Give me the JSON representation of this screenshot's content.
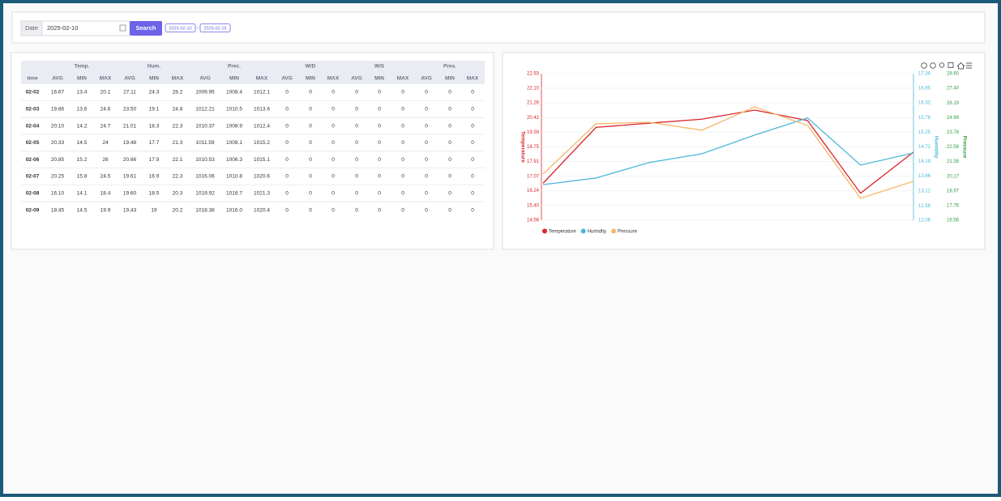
{
  "search": {
    "label": "Date",
    "date": "2025-02-10",
    "button": "Search",
    "range_start": "2025-02-10",
    "range_sep": "~",
    "range_end": "2025-02-16"
  },
  "table": {
    "groups": [
      "Temp.",
      "Hum.",
      "Prec.",
      "W/D",
      "W/S",
      "Pres."
    ],
    "columns": [
      "time",
      "AVG",
      "MIN",
      "MAX",
      "AVG",
      "MIN",
      "MAX",
      "AVG",
      "MIN",
      "MAX",
      "AVG",
      "MIN",
      "MAX",
      "AVG",
      "MIN",
      "MAX",
      "AVG",
      "MIN",
      "MAX"
    ],
    "rows": [
      [
        "02-02",
        "16.67",
        "13.4",
        "20.1",
        "27.11",
        "24.3",
        "28.2",
        "1009.95",
        "1008.4",
        "1012.1",
        "0",
        "0",
        "0",
        "0",
        "0",
        "0",
        "0",
        "0",
        "0"
      ],
      [
        "02-03",
        "19.86",
        "13.6",
        "24.6",
        "23.50",
        "19.1",
        "24.8",
        "1012.21",
        "1010.5",
        "1013.6",
        "0",
        "0",
        "0",
        "0",
        "0",
        "0",
        "0",
        "0",
        "0"
      ],
      [
        "02-04",
        "20.10",
        "14.2",
        "24.7",
        "21.01",
        "18.3",
        "22.3",
        "1010.37",
        "1008.9",
        "1012.4",
        "0",
        "0",
        "0",
        "0",
        "0",
        "0",
        "0",
        "0",
        "0"
      ],
      [
        "02-05",
        "20.33",
        "14.5",
        "24",
        "19.48",
        "17.7",
        "21.3",
        "1011.59",
        "1008.1",
        "1015.2",
        "0",
        "0",
        "0",
        "0",
        "0",
        "0",
        "0",
        "0",
        "0"
      ],
      [
        "02-06",
        "20.85",
        "15.2",
        "26",
        "20.66",
        "17.9",
        "22.1",
        "1010.53",
        "1006.3",
        "1015.1",
        "0",
        "0",
        "0",
        "0",
        "0",
        "0",
        "0",
        "0",
        "0"
      ],
      [
        "02-07",
        "20.25",
        "15.8",
        "24.5",
        "19.61",
        "16.9",
        "22.3",
        "1016.06",
        "1010.8",
        "1020.6",
        "0",
        "0",
        "0",
        "0",
        "0",
        "0",
        "0",
        "0",
        "0"
      ],
      [
        "02-08",
        "16.10",
        "14.1",
        "18.4",
        "19.60",
        "18.5",
        "20.3",
        "1019.92",
        "1018.7",
        "1021.3",
        "0",
        "0",
        "0",
        "0",
        "0",
        "0",
        "0",
        "0",
        "0"
      ],
      [
        "02-09",
        "18.45",
        "14.5",
        "19.9",
        "19.43",
        "19",
        "20.2",
        "1018.38",
        "1016.0",
        "1020.4",
        "0",
        "0",
        "0",
        "0",
        "0",
        "0",
        "0",
        "0",
        "0"
      ]
    ]
  },
  "chart_data": {
    "type": "line",
    "categories": [
      null,
      null,
      null,
      null,
      null,
      null,
      null,
      null
    ],
    "series": [
      {
        "name": "Temperature",
        "color": "#d9262b",
        "axis": "y",
        "values": [
          16.67,
          19.86,
          20.1,
          20.33,
          20.85,
          20.25,
          16.1,
          18.45
        ]
      },
      {
        "name": "Humidity",
        "color": "#4bb8d8",
        "axis": "y2",
        "values": [
          13.35,
          13.59,
          14.15,
          14.47,
          15.15,
          15.77,
          14.06,
          14.5
        ]
      },
      {
        "name": "Pressure",
        "color": "#f5b86a",
        "axis": "y3",
        "values": [
          20.35,
          24.48,
          24.61,
          23.95,
          25.87,
          24.34,
          18.36,
          19.75
        ]
      }
    ],
    "ylim": [
      14.56,
      22.93
    ],
    "yticks": [
      14.56,
      {
        "value": 15.4,
        "label": "15.40"
      },
      16.24,
      17.07,
      17.91,
      18.75,
      19.59,
      20.42,
      21.26,
      {
        "value": 22.1,
        "label": "22.10"
      },
      22.93
    ],
    "y2lim": [
      12.06,
      17.38
    ],
    "y2ticks": [
      12.06,
      12.58,
      13.12,
      13.66,
      14.19,
      14.72,
      15.25,
      15.78,
      16.32,
      16.85,
      17.38
    ],
    "y3lim": [
      16.56,
      28.6
    ],
    "y3ticks": [
      16.56,
      17.76,
      18.97,
      20.17,
      21.38,
      22.58,
      23.78,
      24.99,
      26.19,
      {
        "value": 27.4,
        "label": "27.40"
      },
      {
        "value": 28.6,
        "label": "28.60"
      }
    ],
    "grid": true
  }
}
